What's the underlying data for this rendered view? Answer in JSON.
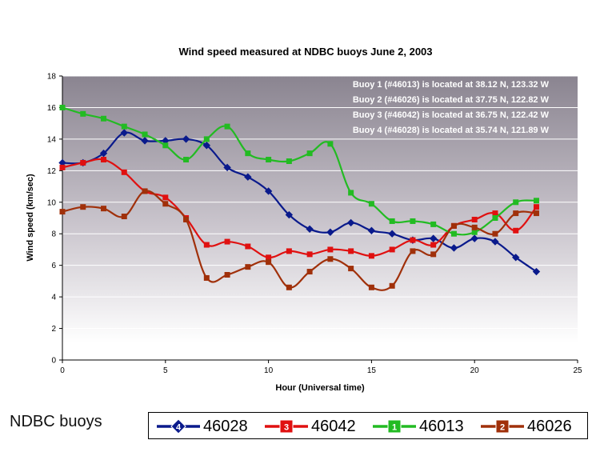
{
  "chart_data": {
    "type": "line",
    "title": "Wind speed measured at NDBC buoys June 2, 2003",
    "xlabel": "Hour (Universal time)",
    "ylabel": "Wind speed  (km/sec)",
    "xlim": [
      0,
      25
    ],
    "ylim": [
      0,
      18
    ],
    "xticks": [
      0,
      5,
      10,
      15,
      20,
      25
    ],
    "yticks": [
      0,
      2,
      4,
      6,
      8,
      10,
      12,
      14,
      16,
      18
    ],
    "grid": true,
    "annotations": [
      "Buoy 1 (#46013) is located at 38.12 N, 123.32 W",
      "Buoy 2 (#46026) is located at 37.75 N, 122.82 W",
      "Buoy 3 (#46042) is located at 36.75 N, 122.42 W",
      "Buoy 4 (#46028) is located at 35.74 N, 121.89 W"
    ],
    "series": [
      {
        "name": "46028",
        "marker_label": "4",
        "marker": "diamond",
        "color": "#0a1a8c",
        "x": [
          0,
          1,
          2,
          3,
          4,
          5,
          6,
          7,
          8,
          9,
          10,
          11,
          12,
          13,
          14,
          15,
          16,
          17,
          18,
          19,
          20,
          21,
          22,
          23
        ],
        "y": [
          12.5,
          12.5,
          13.1,
          14.4,
          13.9,
          13.9,
          14.0,
          13.6,
          12.2,
          11.6,
          10.7,
          9.2,
          8.3,
          8.1,
          8.7,
          8.2,
          8.0,
          7.6,
          7.7,
          7.1,
          7.7,
          7.5,
          6.5,
          5.6
        ]
      },
      {
        "name": "46042",
        "marker_label": "3",
        "marker": "square",
        "color": "#e01010",
        "x": [
          0,
          1,
          2,
          3,
          4,
          5,
          6,
          7,
          8,
          9,
          10,
          11,
          12,
          13,
          14,
          15,
          16,
          17,
          18,
          19,
          20,
          21,
          22,
          23
        ],
        "y": [
          12.2,
          12.5,
          12.7,
          11.9,
          10.7,
          10.3,
          9.0,
          7.3,
          7.5,
          7.2,
          6.5,
          6.9,
          6.7,
          7.0,
          6.9,
          6.6,
          7.0,
          7.6,
          7.3,
          8.5,
          8.9,
          9.3,
          8.2,
          9.7
        ]
      },
      {
        "name": "46013",
        "marker_label": "1",
        "marker": "square",
        "color": "#22bb22",
        "x": [
          0,
          1,
          2,
          3,
          4,
          5,
          6,
          7,
          8,
          9,
          10,
          11,
          12,
          13,
          14,
          15,
          16,
          17,
          18,
          19,
          20,
          21,
          22,
          23
        ],
        "y": [
          16.0,
          15.6,
          15.3,
          14.8,
          14.3,
          13.6,
          12.7,
          14.0,
          14.8,
          13.1,
          12.7,
          12.6,
          13.1,
          13.7,
          10.6,
          9.9,
          8.8,
          8.8,
          8.6,
          8.0,
          8.1,
          9.0,
          10.0,
          10.1
        ]
      },
      {
        "name": "46026",
        "marker_label": "2",
        "marker": "square",
        "color": "#a0300a",
        "x": [
          0,
          1,
          2,
          3,
          4,
          5,
          6,
          7,
          8,
          9,
          10,
          11,
          12,
          13,
          14,
          15,
          16,
          17,
          18,
          19,
          20,
          21,
          22,
          23
        ],
        "y": [
          9.4,
          9.7,
          9.6,
          9.1,
          10.7,
          9.9,
          8.9,
          5.2,
          5.4,
          5.9,
          6.2,
          4.6,
          5.6,
          6.4,
          5.8,
          4.6,
          4.7,
          6.9,
          6.7,
          8.5,
          8.4,
          8.0,
          9.3,
          9.3
        ]
      }
    ],
    "legend_position": "bottom"
  },
  "footer": {
    "title": "NDBC buoys"
  }
}
